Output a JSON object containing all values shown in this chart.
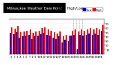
{
  "title_left": "Milwaukee Weather Dew Point",
  "title_right": "Daily High/Low",
  "legend_high": "High",
  "legend_low": "Low",
  "color_high": "#ff0000",
  "color_low": "#0000cc",
  "background_color": "#ffffff",
  "title_bg_color": "#000000",
  "title_text_color": "#ffffff",
  "ylim": [
    0,
    80
  ],
  "yticks": [
    10,
    20,
    30,
    40,
    50,
    60,
    70
  ],
  "ytick_labels": [
    "10",
    "20",
    "30",
    "40",
    "50",
    "60",
    "70"
  ],
  "days": [
    1,
    2,
    3,
    4,
    5,
    6,
    7,
    8,
    9,
    10,
    11,
    12,
    13,
    14,
    15,
    16,
    17,
    18,
    19,
    20,
    21,
    22,
    23,
    24,
    25,
    26,
    27,
    28,
    29,
    30,
    31
  ],
  "high": [
    62,
    58,
    65,
    50,
    52,
    54,
    56,
    48,
    52,
    54,
    60,
    62,
    57,
    54,
    50,
    47,
    52,
    40,
    44,
    42,
    54,
    57,
    52,
    57,
    54,
    57,
    60,
    57,
    60,
    57,
    67
  ],
  "low": [
    48,
    45,
    50,
    37,
    40,
    42,
    44,
    34,
    40,
    42,
    46,
    49,
    44,
    42,
    37,
    34,
    40,
    27,
    32,
    30,
    42,
    44,
    10,
    44,
    42,
    44,
    47,
    44,
    47,
    44,
    54
  ],
  "bar_width": 0.45,
  "dashed_cols": [
    21,
    22,
    23,
    24
  ],
  "title_fontsize": 3.8,
  "axis_fontsize": 2.8,
  "legend_fontsize": 2.8,
  "ylabel_right": true
}
